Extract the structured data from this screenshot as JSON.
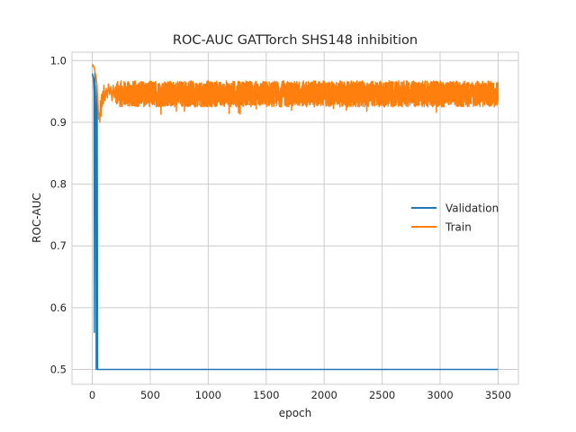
{
  "chart_data": {
    "type": "line",
    "title": "ROC-AUC GATTorch SHS148 inhibition",
    "xlabel": "epoch",
    "ylabel": "ROC-AUC",
    "xlim": [
      -175,
      3675
    ],
    "ylim": [
      0.476,
      1.0135
    ],
    "x_ticks": [
      0,
      500,
      1000,
      1500,
      2000,
      2500,
      3000,
      3500
    ],
    "y_ticks": [
      0.5,
      0.6,
      0.7,
      0.8,
      0.9,
      1.0
    ],
    "x_tick_labels": [
      "0",
      "500",
      "1000",
      "1500",
      "2000",
      "2500",
      "3000",
      "3500"
    ],
    "y_tick_labels": [
      "0.5",
      "0.6",
      "0.7",
      "0.8",
      "0.9",
      "1.0"
    ],
    "grid": true,
    "legend_position": "center-right",
    "series": [
      {
        "name": "Validation",
        "color": "#1f77b4",
        "points": [
          [
            0,
            0.979
          ],
          [
            5,
            0.975
          ],
          [
            10,
            0.97
          ],
          [
            15,
            0.95
          ],
          [
            18,
            0.56
          ],
          [
            22,
            0.98
          ],
          [
            26,
            0.93
          ],
          [
            30,
            0.9
          ],
          [
            34,
            0.5
          ],
          [
            38,
            0.96
          ],
          [
            42,
            0.92
          ],
          [
            46,
            0.5
          ],
          [
            50,
            0.5
          ],
          [
            3500,
            0.5
          ]
        ]
      },
      {
        "name": "Train",
        "color": "#ff7f0e",
        "points": [
          [
            0,
            0.99
          ],
          [
            5,
            0.993
          ],
          [
            10,
            0.991
          ],
          [
            15,
            0.989
          ],
          [
            20,
            0.985
          ],
          [
            25,
            0.98
          ],
          [
            30,
            0.975
          ],
          [
            35,
            0.97
          ],
          [
            40,
            0.96
          ],
          [
            45,
            0.94
          ],
          [
            50,
            0.925
          ],
          [
            55,
            0.905
          ],
          [
            60,
            0.915
          ],
          [
            65,
            0.9
          ],
          [
            70,
            0.935
          ],
          [
            75,
            0.91
          ],
          [
            80,
            0.945
          ],
          [
            85,
            0.925
          ],
          [
            90,
            0.95
          ],
          [
            95,
            0.93
          ],
          [
            100,
            0.96
          ],
          [
            110,
            0.935
          ],
          [
            120,
            0.955
          ],
          [
            130,
            0.94
          ],
          [
            140,
            0.962
          ],
          [
            150,
            0.945
          ],
          [
            160,
            0.958
          ],
          [
            170,
            0.935
          ],
          [
            180,
            0.96
          ],
          [
            190,
            0.94
          ],
          [
            200,
            0.957
          ]
        ],
        "noise_band": {
          "x_start": 200,
          "x_end": 3500,
          "y_low": 0.925,
          "y_high": 0.967,
          "min_dip": 0.913
        }
      }
    ]
  }
}
